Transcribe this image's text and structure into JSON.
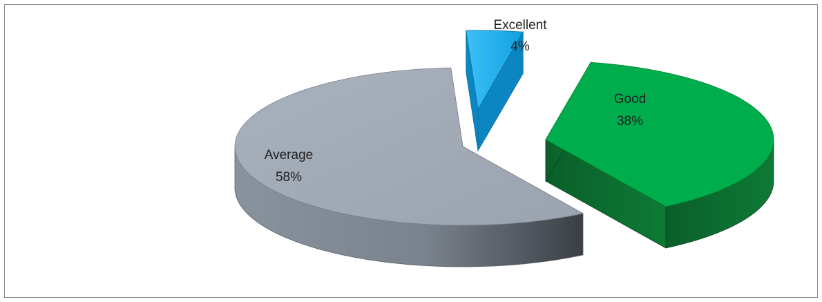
{
  "chart_data": {
    "type": "pie",
    "style": "3d-exploded",
    "title": "",
    "slices": [
      {
        "label": "Excellent",
        "value": 4,
        "percent_label": "4%",
        "color": "#1ea7e8"
      },
      {
        "label": "Good",
        "value": 38,
        "percent_label": "38%",
        "color": "#00ad4d"
      },
      {
        "label": "Average",
        "value": 58,
        "percent_label": "58%",
        "color": "#a2aab6"
      }
    ],
    "legend": "none"
  }
}
